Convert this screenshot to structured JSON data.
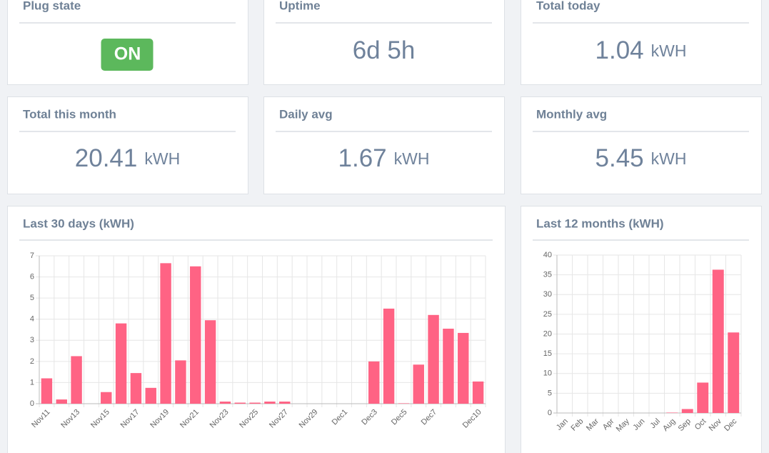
{
  "cards": [
    {
      "title": "Plug state",
      "badge": "ON"
    },
    {
      "title": "Uptime",
      "value": "6d 5h"
    },
    {
      "title": "Total today",
      "value": 1.04,
      "unit": "kWH"
    },
    {
      "title": "Total this month",
      "value": 20.41,
      "unit": "kWH"
    },
    {
      "title": "Daily avg",
      "value": 1.67,
      "unit": "kWH"
    },
    {
      "title": "Monthly avg",
      "value": 5.45,
      "unit": "kWH"
    }
  ],
  "chart_data": [
    {
      "type": "bar",
      "title": "Last 30 days (kWH)",
      "color": "#ff6384",
      "grid": true,
      "categories": [
        "Nov11",
        null,
        "Nov13",
        null,
        "Nov15",
        null,
        "Nov17",
        null,
        "Nov19",
        null,
        "Nov21",
        null,
        "Nov23",
        null,
        "Nov25",
        null,
        "Nov27",
        null,
        "Nov29",
        null,
        "Dec1",
        null,
        "Dec3",
        null,
        "Dec5",
        null,
        "Dec7",
        null,
        null,
        "Dec10"
      ],
      "values": [
        1.2,
        0.2,
        2.25,
        0,
        0.55,
        3.8,
        1.45,
        0.75,
        6.65,
        2.05,
        6.5,
        3.95,
        0.1,
        0.05,
        0.05,
        0.1,
        0.1,
        0,
        0,
        0,
        0,
        0,
        2.0,
        4.5,
        0.02,
        1.85,
        4.2,
        3.55,
        3.35,
        1.05
      ],
      "ylim": [
        0,
        7
      ],
      "yticks": [
        0,
        1,
        2,
        3,
        4,
        5,
        6,
        7
      ]
    },
    {
      "type": "bar",
      "title": "Last 12 months (kWH)",
      "color": "#ff6384",
      "grid": true,
      "categories": [
        "Jan",
        "Feb",
        "Mar",
        "Apr",
        "May",
        "Jun",
        "Jul",
        "Aug",
        "Sep",
        "Oct",
        "Nov",
        "Dec"
      ],
      "values": [
        0,
        0,
        0,
        0,
        0,
        0,
        0,
        0.1,
        1.0,
        7.7,
        36.3,
        20.4
      ],
      "ylim": [
        0,
        40
      ],
      "yticks": [
        0,
        5,
        10,
        15,
        20,
        25,
        30,
        35,
        40
      ]
    }
  ]
}
